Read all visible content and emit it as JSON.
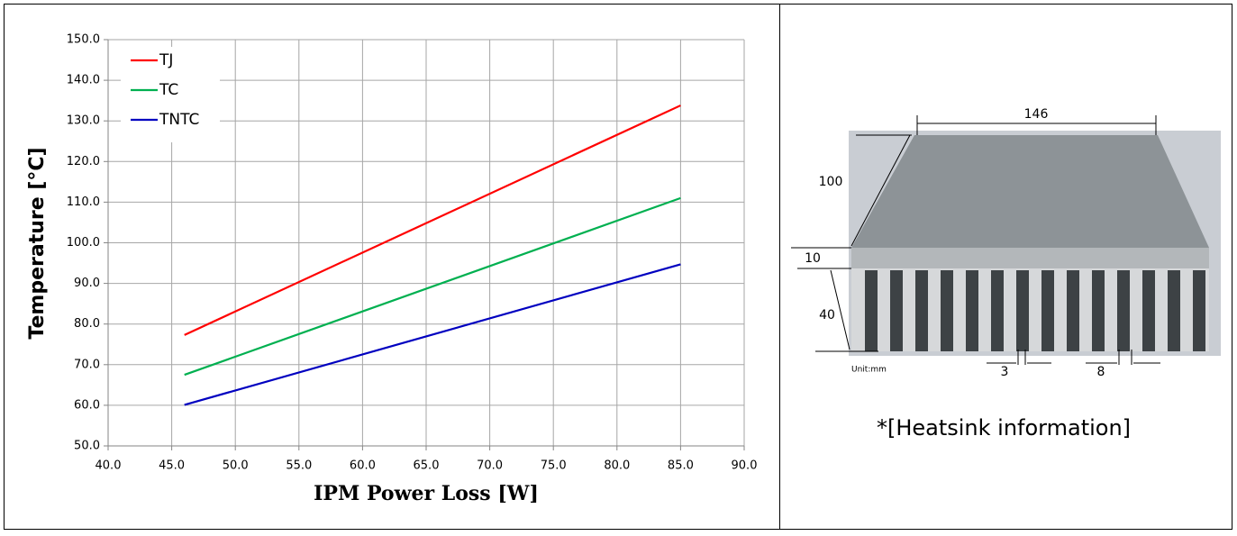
{
  "chart_data": {
    "type": "line",
    "xlabel": "IPM Power Loss [W]",
    "ylabel": "Temperature [°C]",
    "x": [
      46,
      85
    ],
    "series": [
      {
        "name": "TJ",
        "color": "#ff0000",
        "values": [
          77.3,
          133.8
        ]
      },
      {
        "name": "TC",
        "color": "#00b050",
        "values": [
          67.5,
          111.0
        ]
      },
      {
        "name": "TNTC",
        "color": "#0000c0",
        "values": [
          60.1,
          94.7
        ]
      }
    ],
    "xlim": [
      40,
      90
    ],
    "xticks": [
      {
        "value": 40,
        "label": "40.0"
      },
      {
        "value": 45,
        "label": "45.0"
      },
      {
        "value": 50,
        "label": "50.0"
      },
      {
        "value": 55,
        "label": "55.0"
      },
      {
        "value": 60,
        "label": "60.0"
      },
      {
        "value": 65,
        "label": "65.0"
      },
      {
        "value": 70,
        "label": "70.0"
      },
      {
        "value": 75,
        "label": "75.0"
      },
      {
        "value": 80,
        "label": "80.0"
      },
      {
        "value": 85,
        "label": "85.0"
      },
      {
        "value": 90,
        "label": "90.0"
      }
    ],
    "ylim": [
      50,
      150
    ],
    "yticks": [
      {
        "value": 50,
        "label": "50.0"
      },
      {
        "value": 60,
        "label": "60.0"
      },
      {
        "value": 70,
        "label": "70.0"
      },
      {
        "value": 80,
        "label": "80.0"
      },
      {
        "value": 90,
        "label": "90.0"
      },
      {
        "value": 100,
        "label": "100.0"
      },
      {
        "value": 110,
        "label": "110.0"
      },
      {
        "value": 120,
        "label": "120.0"
      },
      {
        "value": 130,
        "label": "130.0"
      },
      {
        "value": 140,
        "label": "140.0"
      },
      {
        "value": 150,
        "label": "150.0"
      }
    ],
    "grid": true,
    "legend": "upper left"
  },
  "heatsink": {
    "width": "146",
    "depth": "100",
    "base": "10",
    "fin_height": "40",
    "fin_thickness": "3",
    "fin_pitch": "8",
    "unit": "Unit:mm",
    "caption": "*[Heatsink information]"
  }
}
